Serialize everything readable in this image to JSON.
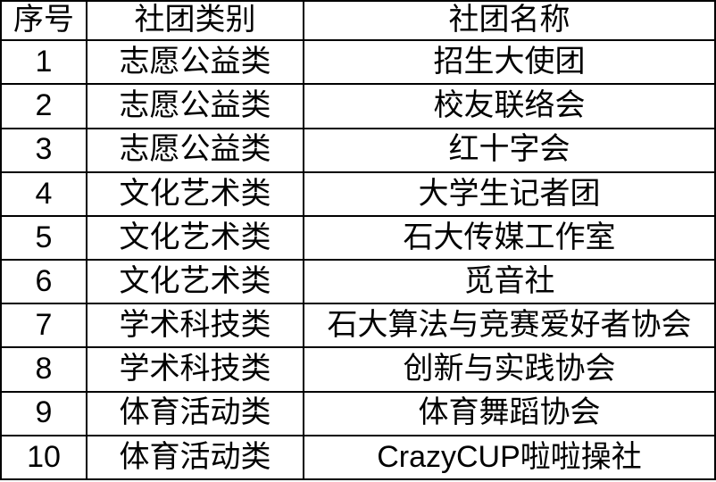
{
  "table": {
    "headers": [
      "序号",
      "社团类别",
      "社团名称"
    ],
    "rows": [
      [
        "1",
        "志愿公益类",
        "招生大使团"
      ],
      [
        "2",
        "志愿公益类",
        "校友联络会"
      ],
      [
        "3",
        "志愿公益类",
        "红十字会"
      ],
      [
        "4",
        "文化艺术类",
        "大学生记者团"
      ],
      [
        "5",
        "文化艺术类",
        "石大传媒工作室"
      ],
      [
        "6",
        "文化艺术类",
        "觅音社"
      ],
      [
        "7",
        "学术科技类",
        "石大算法与竞赛爱好者协会"
      ],
      [
        "8",
        "学术科技类",
        "创新与实践协会"
      ],
      [
        "9",
        "体育活动类",
        "体育舞蹈协会"
      ],
      [
        "10",
        "体育活动类",
        "CrazyCUP啦啦操社"
      ]
    ],
    "colors": {
      "border": "#000000",
      "text": "#000000",
      "background": "#ffffff"
    }
  }
}
